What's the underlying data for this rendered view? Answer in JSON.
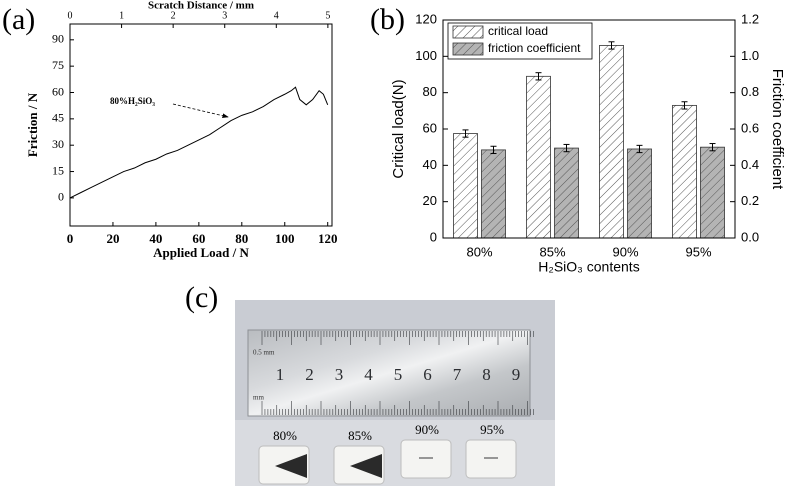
{
  "chart_data": [
    {
      "type": "line",
      "panel_label": "(a)",
      "xlabel": "Applied Load / N",
      "ylabel": "Friction / N",
      "x2label": "Scratch Distance / mm",
      "annotation": "80%H₂SiO₃",
      "color": "#000000",
      "x": [
        0,
        5,
        10,
        15,
        20,
        25,
        30,
        35,
        40,
        45,
        50,
        55,
        60,
        65,
        70,
        75,
        80,
        85,
        90,
        95,
        100,
        103,
        105,
        107,
        110,
        113,
        116,
        118,
        120
      ],
      "values": [
        0,
        3,
        6,
        9,
        12,
        15,
        17,
        20,
        22,
        25,
        27,
        30,
        33,
        36,
        40,
        44,
        47,
        49,
        52,
        56,
        59,
        61,
        63,
        56,
        53,
        56,
        61,
        59,
        53
      ],
      "xlim": [
        0,
        122
      ],
      "xticks": [
        0,
        20,
        40,
        60,
        80,
        100,
        120
      ],
      "x2lim": [
        0,
        5.08
      ],
      "x2ticks": [
        0,
        1,
        2,
        3,
        4,
        5
      ],
      "ylim": [
        -16,
        99
      ],
      "yticks": [
        0,
        15,
        30,
        45,
        60,
        75,
        90
      ]
    },
    {
      "type": "bar",
      "panel_label": "(b)",
      "xlabel": "H₂SiO₃  contents",
      "ylabel": "Critical load(N)",
      "y2label": "Friction coefficient",
      "categories": [
        "80%",
        "85%",
        "90%",
        "95%"
      ],
      "series": [
        {
          "name": "critical load",
          "color": "#ffffff",
          "values": [
            57.5,
            89,
            106,
            73
          ],
          "errors": [
            2,
            2,
            2,
            2
          ]
        },
        {
          "name": "friction coefficient",
          "color": "#b4b4b4",
          "values": [
            0.485,
            0.495,
            0.49,
            0.5
          ],
          "errors": [
            0.02,
            0.02,
            0.02,
            0.02
          ],
          "axis": "y2"
        }
      ],
      "ylim": [
        0,
        120
      ],
      "yticks": [
        0,
        20,
        40,
        60,
        80,
        100,
        120
      ],
      "y2lim": [
        0,
        1.2
      ],
      "y2ticks": [
        {
          "value": 0,
          "label": "0.0"
        },
        0.2,
        0.4,
        0.6,
        0.8,
        {
          "value": 1,
          "label": "1.0"
        },
        1.2
      ]
    }
  ],
  "photo": {
    "panel_label": "(c)",
    "ruler_caption": "0.5 mm",
    "ruler_unit": "mm",
    "ruler_numbers": [
      "1",
      "2",
      "3",
      "4",
      "5",
      "6",
      "7",
      "8",
      "9"
    ],
    "samples": [
      "80%",
      "85%",
      "90%",
      "95%"
    ]
  }
}
